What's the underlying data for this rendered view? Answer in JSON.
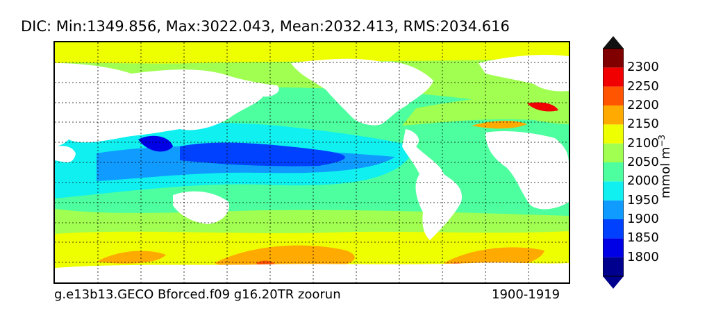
{
  "title": "DIC: Min:1349.856, Max:3022.043, Mean:2032.413, RMS:2034.616",
  "caption_left": "g.e13b13.GECO Bforced.f09 g16.20TR zoorun",
  "caption_right": "1900-1919",
  "colorbar": {
    "unit_text": "mmol m",
    "unit_exponent": "−3",
    "tick_labels": [
      "2300",
      "2250",
      "2200",
      "2150",
      "2100",
      "2050",
      "2000",
      "1950",
      "1900",
      "1850",
      "1800"
    ],
    "levels": [
      {
        "min": 1750,
        "max": 1800,
        "color": "#00008f"
      },
      {
        "min": 1800,
        "max": 1850,
        "color": "#0000e6"
      },
      {
        "min": 1850,
        "max": 1900,
        "color": "#0040ff"
      },
      {
        "min": 1900,
        "max": 1950,
        "color": "#0f9bff"
      },
      {
        "min": 1950,
        "max": 2000,
        "color": "#10f0f0"
      },
      {
        "min": 2000,
        "max": 2050,
        "color": "#4dff9f"
      },
      {
        "min": 2050,
        "max": 2100,
        "color": "#a0ff50"
      },
      {
        "min": 2100,
        "max": 2150,
        "color": "#eeff00"
      },
      {
        "min": 2150,
        "max": 2200,
        "color": "#ffaa00"
      },
      {
        "min": 2200,
        "max": 2250,
        "color": "#ff5500"
      },
      {
        "min": 2250,
        "max": 2300,
        "color": "#f00000"
      },
      {
        "min": 2300,
        "max": 2350,
        "color": "#800000"
      }
    ],
    "extend_low_color": "#00008f",
    "extend_high_color": "#111111"
  },
  "map": {
    "land_color": "#ffffff",
    "gridline_style": "dotted"
  }
}
